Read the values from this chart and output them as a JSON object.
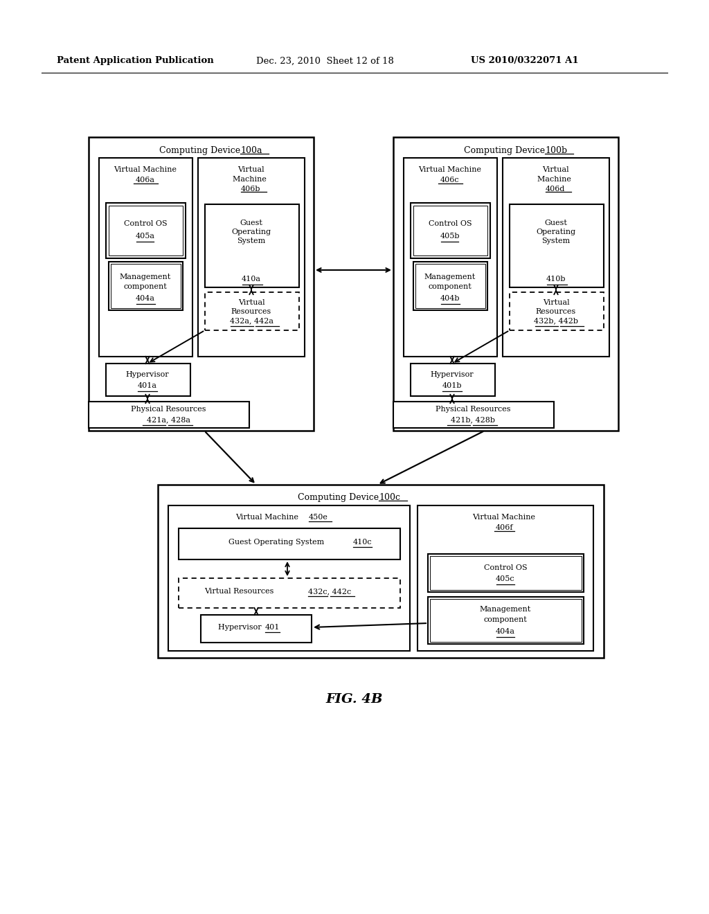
{
  "bg_color": "#ffffff",
  "header_text_left": "Patent Application Publication",
  "header_text_mid": "Dec. 23, 2010  Sheet 12 of 18",
  "header_text_right": "US 2010/0322071 A1",
  "fig_label": "FIG. 4B",
  "font_family": "DejaVu Serif"
}
